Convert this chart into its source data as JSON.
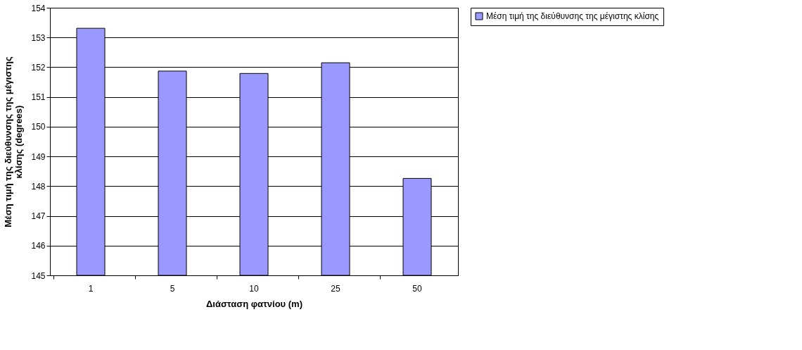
{
  "chart_data": {
    "type": "bar",
    "xlabel": "Διάσταση φατνίου (m)",
    "ylabel": "Μέση τιμή της διεύθυνσης της μέγιστης κλίσης (degrees)",
    "categories": [
      "1",
      "5",
      "10",
      "25",
      "50"
    ],
    "series": [
      {
        "name": "Μέση τιμή της διεύθυνσης της μέγιστης κλίσης",
        "color": "#9999ff",
        "values": [
          153.31,
          151.87,
          151.79,
          152.15,
          148.26
        ]
      }
    ],
    "ylim": [
      145,
      154
    ],
    "yticks": [
      145,
      146,
      147,
      148,
      149,
      150,
      151,
      152,
      153,
      154
    ],
    "grid": "y",
    "legend": "right"
  }
}
